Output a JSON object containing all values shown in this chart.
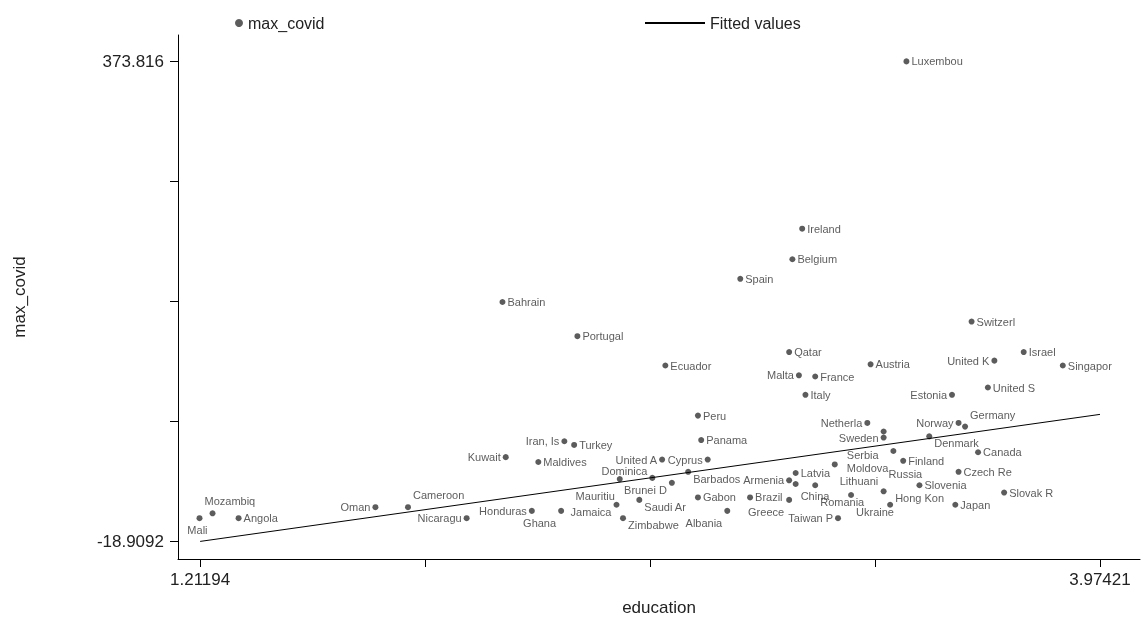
{
  "chart_data": {
    "type": "scatter",
    "xlabel": "education",
    "ylabel": "max_covid",
    "xlim": [
      1.144,
      4.097
    ],
    "ylim": [
      -33.4,
      395.6
    ],
    "xticks": [
      1.21194,
      {
        "value": 1.90251,
        "label": null
      },
      {
        "value": 2.59308,
        "label": null
      },
      {
        "value": 3.28364,
        "label": null
      },
      3.97421
    ],
    "yticks": [
      -18.9092,
      {
        "value": 79.272,
        "label": null
      },
      {
        "value": 177.453,
        "label": null
      },
      {
        "value": 275.635,
        "label": null
      },
      373.816
    ],
    "grid": false,
    "legend": "top",
    "series": [
      {
        "name": "max_covid",
        "color": "#333333",
        "marker": "circle",
        "x": [
          3.38,
          3.06,
          3.03,
          2.87,
          2.14,
          2.37,
          3.58,
          3.74,
          3.65,
          3.86,
          3.02,
          3.27,
          2.64,
          3.05,
          3.1,
          3.63,
          3.52,
          3.07,
          2.74,
          3.26,
          3.54,
          3.31,
          3.56,
          3.31,
          3.45,
          2.75,
          2.33,
          2.36,
          3.34,
          3.6,
          2.15,
          3.37,
          2.63,
          2.77,
          2.25,
          3.16,
          3.54,
          2.71,
          3.04,
          2.5,
          2.6,
          2.66,
          3.02,
          3.42,
          3.04,
          3.1,
          3.68,
          3.31,
          3.21,
          2.9,
          2.74,
          2.56,
          3.02,
          3.33,
          3.53,
          3.17,
          2.49,
          1.75,
          1.85,
          2.23,
          2.32,
          2.83,
          1.21,
          1.25,
          1.33,
          2.03,
          2.51
        ],
        "values": [
          374,
          237,
          212,
          196,
          177,
          149,
          161,
          136,
          129,
          125,
          136,
          126,
          125,
          117,
          116,
          107,
          101,
          101,
          84,
          78,
          78,
          71,
          75,
          66,
          67,
          64,
          63,
          60,
          55,
          54,
          50,
          47,
          48,
          48,
          46,
          44,
          38,
          38,
          37,
          32,
          33,
          29,
          31,
          27,
          28,
          27,
          21,
          22,
          19,
          17,
          17,
          15,
          15,
          11,
          11,
          0,
          11,
          9,
          9,
          6,
          6,
          6,
          0,
          4,
          0,
          0,
          0
        ],
        "value_labels": [
          "Luxembou",
          "Ireland",
          "Belgium",
          "Spain",
          "Bahrain",
          "Portugal",
          "Switzerl",
          "Israel",
          "United K",
          "Singapor",
          "Qatar",
          "Austria",
          "Ecuador",
          "Malta",
          "France",
          "United S",
          "Estonia",
          "Italy",
          "Peru",
          "Netherla",
          "Norway",
          "Sweden",
          "Germany",
          "Serbia",
          "Denmark",
          "Panama",
          "Iran, Is",
          "Turkey",
          "Moldova",
          "Canada",
          "Kuwait",
          "Finland",
          "United A",
          "Cyprus",
          "Maldives",
          "Lithuani",
          "Czech Re",
          "Barbados",
          "Latvia",
          "Mauritiu",
          "Dominica",
          "Brunei D",
          "Armenia",
          "Slovenia",
          "China",
          "Romania",
          "Slovak R",
          "Russia",
          "Ukraine",
          "Brazil",
          "Gabon",
          "Saudi Ar",
          "Greece",
          "Hong Kon",
          "Japan",
          "Taiwan P",
          "Jamaica",
          "Oman",
          "Cameroon",
          "Honduras",
          "Ghana",
          "Albania",
          "Mozambiq",
          "Mali",
          "Angola",
          "Nicaragu",
          "Zimbabwe"
        ]
      },
      {
        "name": "Fitted values",
        "type": "line",
        "color": "#000000",
        "x": [
          1.21194,
          3.97421
        ],
        "values": [
          -19,
          85
        ]
      }
    ]
  }
}
